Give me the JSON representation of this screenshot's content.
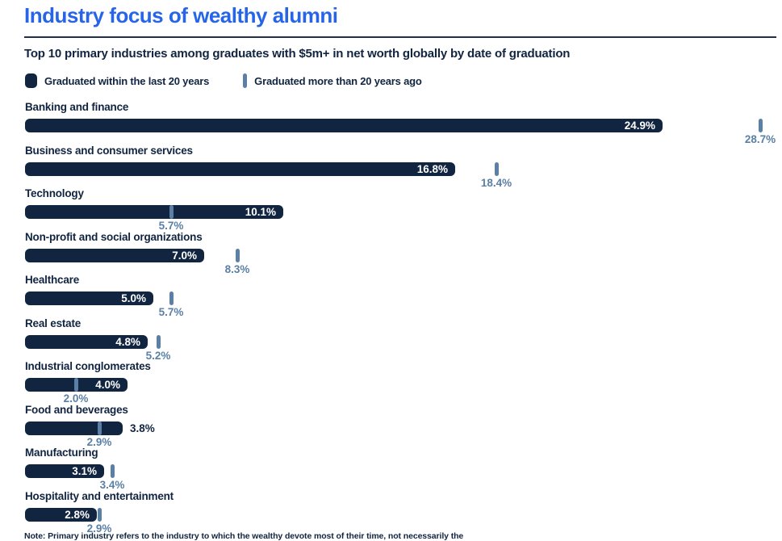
{
  "header": {
    "title": "Industry focus of wealthy alumni",
    "subtitle": "Top 10 primary industries among graduates with $5m+ in net worth globally by date of graduation"
  },
  "legend": [
    {
      "label": "Graduated within the last 20 years",
      "swatch": "bar"
    },
    {
      "label": "Graduated more than 20 years ago",
      "swatch": "tick"
    }
  ],
  "note": "Note: Primary industry refers to the industry to which the wealthy devote most of their time, not necessarily the",
  "colors": {
    "navy": "#112440",
    "steel": "#5B80A5",
    "title_blue": "#2765E8",
    "rule": "#232F49",
    "bar_label_on_bar": "#FFFFFF"
  },
  "chart_data": {
    "type": "bar",
    "orientation": "horizontal",
    "unit": "percent",
    "title": "Industry focus of wealthy alumni",
    "subtitle": "Top 10 primary industries among graduates with $5m+ in net worth globally by date of graduation",
    "categories": [
      "Banking and finance",
      "Business and consumer services",
      "Technology",
      "Non-profit and social organizations",
      "Healthcare",
      "Real estate",
      "Industrial conglomerates",
      "Food and beverages",
      "Manufacturing",
      "Hospitality and entertainment"
    ],
    "series": [
      {
        "name": "Graduated within the last 20 years",
        "marker": "bar",
        "values": [
          24.9,
          16.8,
          10.1,
          7.0,
          5.0,
          4.8,
          4.0,
          3.8,
          3.1,
          2.8
        ],
        "labels": [
          "24.9%",
          "16.8%",
          "10.1%",
          "7.0%",
          "5.0%",
          "4.8%",
          "4.0%",
          "3.8%",
          "3.1%",
          "2.8%"
        ]
      },
      {
        "name": "Graduated more than 20 years ago",
        "marker": "tick",
        "values": [
          28.7,
          18.4,
          5.7,
          8.3,
          5.7,
          5.2,
          2.0,
          2.9,
          3.4,
          2.9
        ],
        "labels": [
          "28.7%",
          "18.4%",
          "5.7%",
          "8.3%",
          "5.7%",
          "5.2%",
          "2.0%",
          "2.9%",
          "3.4%",
          "2.9%"
        ]
      }
    ],
    "bar_label_outside": [
      false,
      false,
      false,
      false,
      false,
      false,
      false,
      true,
      false,
      false
    ],
    "xlim": [
      0,
      29.6
    ],
    "grid": false,
    "legend_position": "top"
  }
}
